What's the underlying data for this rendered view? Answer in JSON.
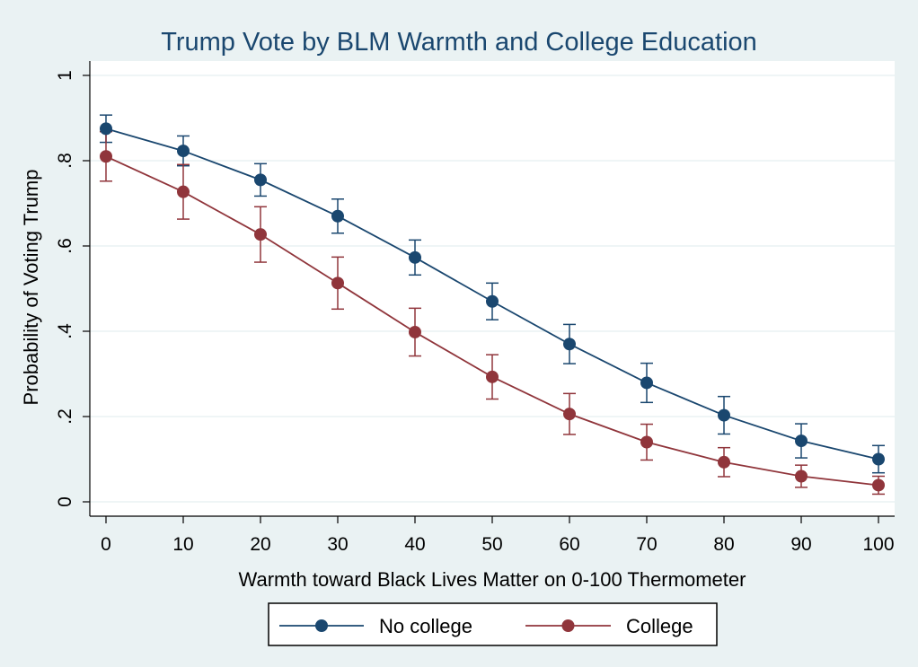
{
  "chart_data": {
    "type": "line",
    "title": "Trump Vote by BLM Warmth and College Education",
    "xlabel": "Warmth toward Black Lives Matter on 0-100 Thermometer",
    "ylabel": "Probability of Voting Trump",
    "xlim": [
      0,
      100
    ],
    "ylim": [
      0,
      1
    ],
    "x_ticks": [
      0,
      10,
      20,
      30,
      40,
      50,
      60,
      70,
      80,
      90,
      100
    ],
    "x_tick_labels": [
      "0",
      "10",
      "20",
      "30",
      "40",
      "50",
      "60",
      "70",
      "80",
      "90",
      "100"
    ],
    "y_ticks": [
      0,
      0.2,
      0.4,
      0.6,
      0.8,
      1
    ],
    "y_tick_labels": [
      "0",
      ".2",
      ".4",
      ".6",
      ".8",
      "1"
    ],
    "grid": true,
    "legend_position": "bottom",
    "x": [
      0,
      10,
      20,
      30,
      40,
      50,
      60,
      70,
      80,
      90,
      100
    ],
    "series": [
      {
        "name": "No college",
        "color": "#1a476f",
        "values": [
          0.875,
          0.823,
          0.755,
          0.67,
          0.573,
          0.47,
          0.37,
          0.279,
          0.203,
          0.143,
          0.1
        ],
        "ci_low": [
          0.843,
          0.788,
          0.717,
          0.63,
          0.532,
          0.427,
          0.324,
          0.233,
          0.159,
          0.103,
          0.068
        ],
        "ci_high": [
          0.907,
          0.858,
          0.793,
          0.71,
          0.614,
          0.513,
          0.416,
          0.325,
          0.247,
          0.183,
          0.132
        ]
      },
      {
        "name": "College",
        "color": "#90353b",
        "values": [
          0.81,
          0.727,
          0.627,
          0.513,
          0.398,
          0.293,
          0.206,
          0.14,
          0.093,
          0.06,
          0.039
        ],
        "ci_low": [
          0.752,
          0.663,
          0.562,
          0.452,
          0.342,
          0.241,
          0.158,
          0.098,
          0.059,
          0.034,
          0.018
        ],
        "ci_high": [
          0.868,
          0.791,
          0.692,
          0.574,
          0.454,
          0.345,
          0.254,
          0.182,
          0.127,
          0.086,
          0.06
        ]
      }
    ]
  }
}
